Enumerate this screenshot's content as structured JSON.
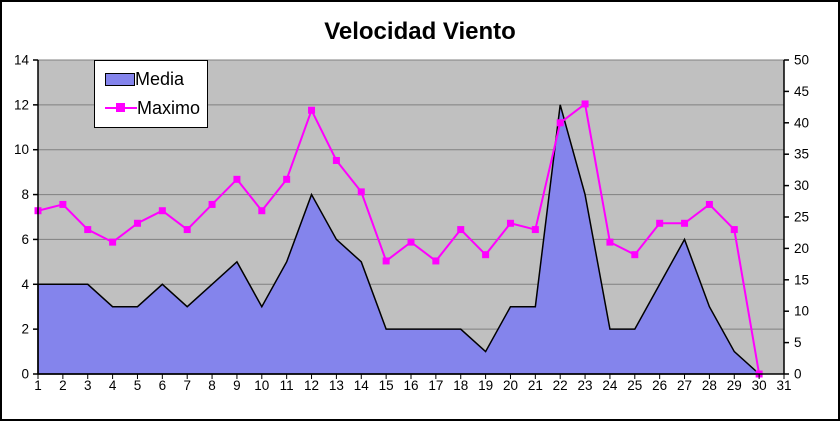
{
  "window": {
    "background": "#ffffff",
    "frame_border": "#000000"
  },
  "chart_data": {
    "type": "combo",
    "title": "Velocidad Viento",
    "legend_position": "top-left",
    "grid": true,
    "plot": {
      "background": "#c0c0c0",
      "gridline_color": "#808080",
      "axis_color": "#000000"
    },
    "categories": [
      1,
      2,
      3,
      4,
      5,
      6,
      7,
      8,
      9,
      10,
      11,
      12,
      13,
      14,
      15,
      16,
      17,
      18,
      19,
      20,
      21,
      22,
      23,
      24,
      25,
      26,
      27,
      28,
      29,
      30,
      31
    ],
    "series": [
      {
        "name": "Media",
        "type": "area",
        "axis": "left",
        "fill_color": "#8484ec",
        "border_color": "#000000",
        "values": [
          4,
          4,
          4,
          3,
          3,
          4,
          3,
          4,
          5,
          3,
          5,
          8,
          6,
          5,
          2,
          2,
          2,
          2,
          1,
          3,
          3,
          12,
          8,
          2,
          2,
          4,
          6,
          3,
          1,
          0
        ]
      },
      {
        "name": "Maximo",
        "type": "line",
        "axis": "right",
        "color": "#ff00ff",
        "marker": "square",
        "values": [
          26,
          27,
          23,
          21,
          24,
          26,
          23,
          27,
          31,
          26,
          31,
          42,
          34,
          29,
          18,
          21,
          18,
          23,
          19,
          24,
          23,
          40,
          43,
          21,
          19,
          24,
          24,
          27,
          23,
          0
        ]
      }
    ],
    "axes": {
      "left": {
        "min": 0,
        "max": 14,
        "ticks": [
          0,
          2,
          4,
          6,
          8,
          10,
          12,
          14
        ]
      },
      "right": {
        "min": 0,
        "max": 50,
        "ticks": [
          0,
          5,
          10,
          15,
          20,
          25,
          30,
          35,
          40,
          45,
          50
        ]
      },
      "x": {
        "label_color": "#000000"
      }
    }
  }
}
